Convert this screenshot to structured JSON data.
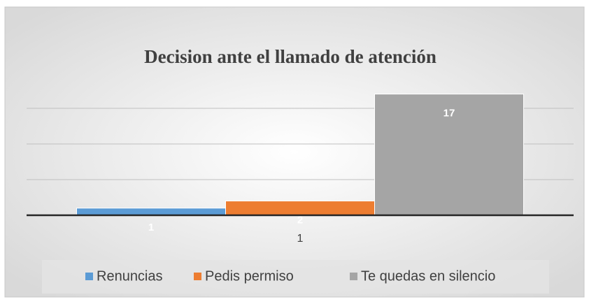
{
  "chart_data": {
    "type": "bar",
    "title": "Decision ante el llamado de atención",
    "categories": [
      "1"
    ],
    "series": [
      {
        "name": "Renuncias",
        "color": "#5b9bd5",
        "values": [
          1
        ]
      },
      {
        "name": "Pedis permiso",
        "color": "#ed7d31",
        "values": [
          2
        ]
      },
      {
        "name": "Te quedas en silencio",
        "color": "#a5a5a5",
        "values": [
          17
        ]
      }
    ],
    "ylim": [
      0,
      20
    ],
    "yticks": [
      0,
      5,
      10,
      15
    ],
    "grid": true,
    "legend": "bottom"
  }
}
